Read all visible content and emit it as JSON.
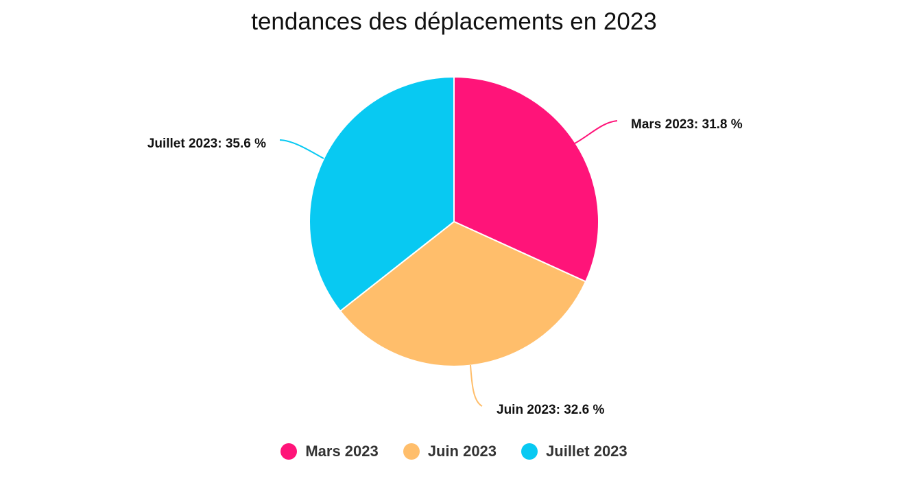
{
  "chart_data": {
    "type": "pie",
    "title": "tendances des déplacements en 2023",
    "series": [
      {
        "name": "Mars 2023",
        "value": 31.8,
        "label": "Mars 2023: 31.8 %",
        "color": "#FF1479"
      },
      {
        "name": "Juin 2023",
        "value": 32.6,
        "label": "Juin 2023: 32.6 %",
        "color": "#FFBE6B"
      },
      {
        "name": "Juillet 2023",
        "value": 35.6,
        "label": "Juillet 2023: 35.6 %",
        "color": "#08C9F2"
      }
    ],
    "legend_position": "bottom"
  }
}
